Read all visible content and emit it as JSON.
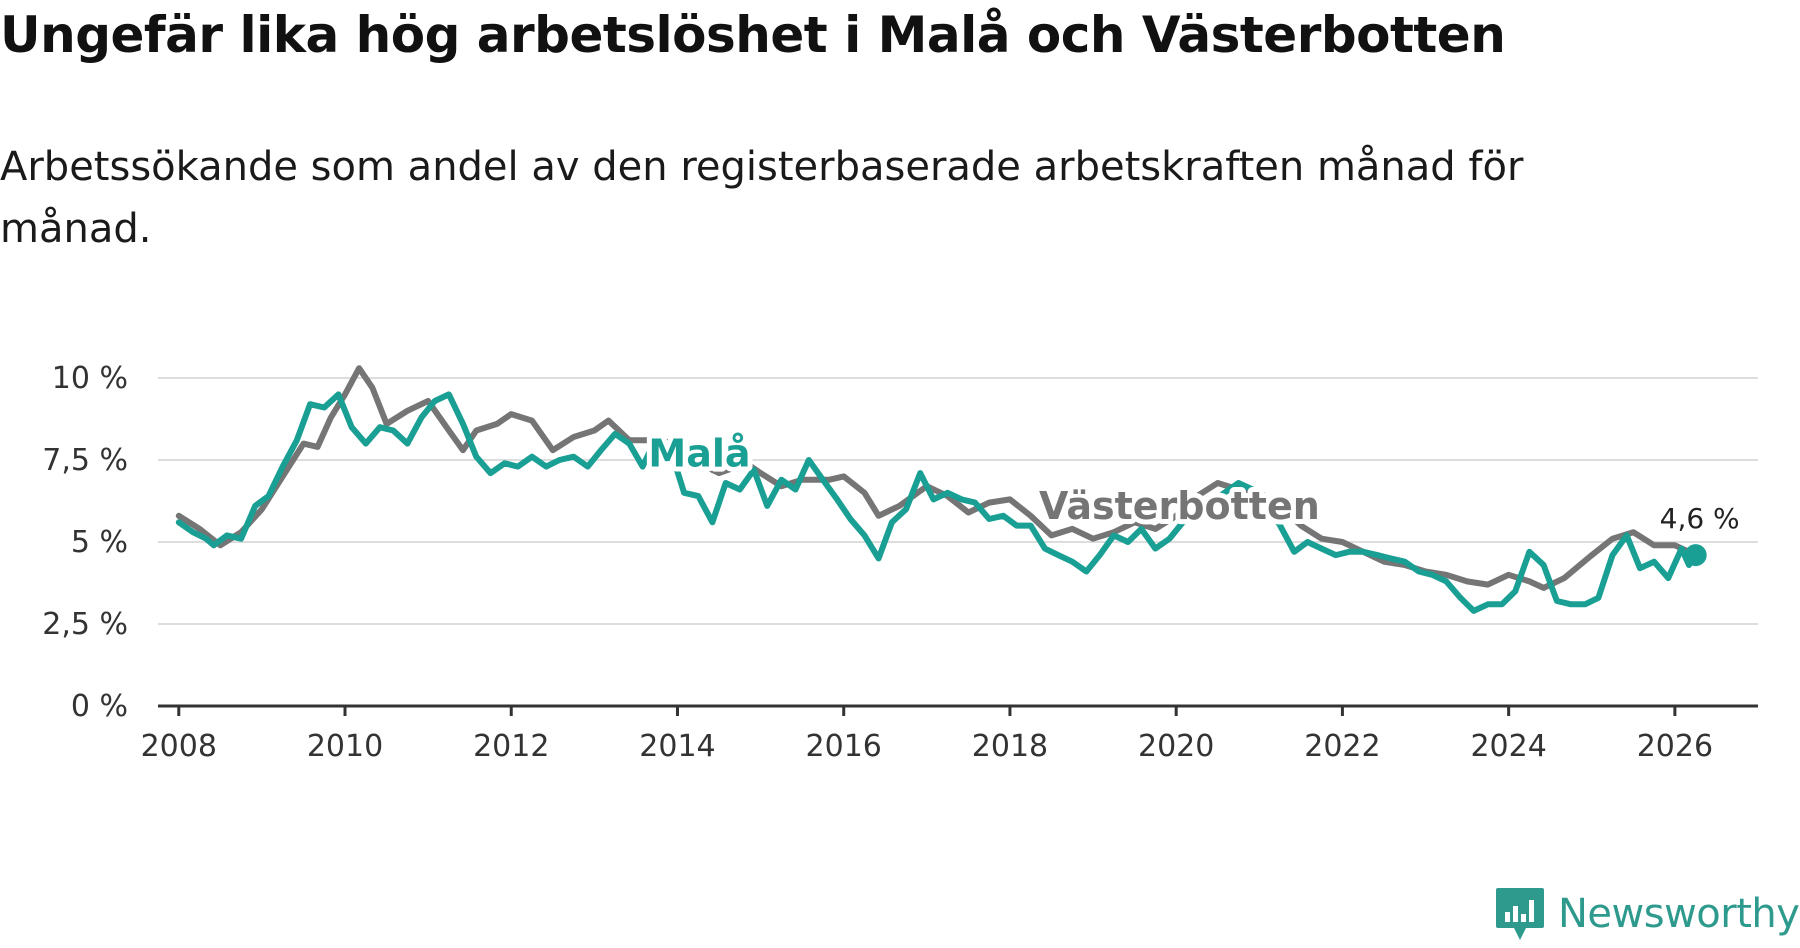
{
  "title": "Ungefär lika hög arbetslöshet i Malå och Västerbotten",
  "subtitle": "Arbetssökande som andel av den registerbaserade arbetskraften månad för månad.",
  "brand": {
    "name": "Newsworthy",
    "icon": "newsworthy-logo-icon"
  },
  "colors": {
    "mala": "#1a9f94",
    "vasterbotten": "#757575",
    "grid": "#dddddd",
    "axis": "#333333",
    "brand": "#2e9a8e"
  },
  "chart_data": {
    "type": "line",
    "title": "Ungefär lika hög arbetslöshet i Malå och Västerbotten",
    "xlabel": "",
    "ylabel": "",
    "xlim": [
      2007.75,
      2027.0
    ],
    "ylim": [
      0,
      10
    ],
    "y_ticks": [
      0,
      2.5,
      5,
      7.5,
      10
    ],
    "y_tick_labels": [
      "0 %",
      "2,5 %",
      "5 %",
      "7,5 %",
      "10 %"
    ],
    "x_ticks": [
      2008,
      2010,
      2012,
      2014,
      2016,
      2018,
      2020,
      2022,
      2024,
      2026
    ],
    "x_tick_labels": [
      "2008",
      "2010",
      "2012",
      "2014",
      "2016",
      "2018",
      "2020",
      "2022",
      "2024",
      "2026"
    ],
    "end_annotation": "4,6 %",
    "grid": true,
    "series": [
      {
        "name": "Västerbotten",
        "label": "Västerbotten",
        "color": "#757575",
        "points": [
          [
            2008.0,
            5.8
          ],
          [
            2008.25,
            5.4
          ],
          [
            2008.5,
            4.9
          ],
          [
            2008.75,
            5.3
          ],
          [
            2009.0,
            6.0
          ],
          [
            2009.25,
            7.0
          ],
          [
            2009.5,
            8.0
          ],
          [
            2009.67,
            7.9
          ],
          [
            2009.83,
            8.8
          ],
          [
            2010.0,
            9.5
          ],
          [
            2010.17,
            10.3
          ],
          [
            2010.33,
            9.7
          ],
          [
            2010.5,
            8.6
          ],
          [
            2010.75,
            9.0
          ],
          [
            2011.0,
            9.3
          ],
          [
            2011.25,
            8.4
          ],
          [
            2011.42,
            7.8
          ],
          [
            2011.58,
            8.4
          ],
          [
            2011.83,
            8.6
          ],
          [
            2012.0,
            8.9
          ],
          [
            2012.25,
            8.7
          ],
          [
            2012.5,
            7.8
          ],
          [
            2012.75,
            8.2
          ],
          [
            2013.0,
            8.4
          ],
          [
            2013.17,
            8.7
          ],
          [
            2013.42,
            8.1
          ],
          [
            2013.75,
            8.1
          ],
          [
            2014.0,
            8.0
          ],
          [
            2014.25,
            7.4
          ],
          [
            2014.5,
            7.1
          ],
          [
            2014.83,
            7.4
          ],
          [
            2015.0,
            7.1
          ],
          [
            2015.25,
            6.7
          ],
          [
            2015.5,
            6.9
          ],
          [
            2015.83,
            6.9
          ],
          [
            2016.0,
            7.0
          ],
          [
            2016.25,
            6.5
          ],
          [
            2016.42,
            5.8
          ],
          [
            2016.67,
            6.1
          ],
          [
            2017.0,
            6.7
          ],
          [
            2017.25,
            6.4
          ],
          [
            2017.5,
            5.9
          ],
          [
            2017.75,
            6.2
          ],
          [
            2018.0,
            6.3
          ],
          [
            2018.25,
            5.8
          ],
          [
            2018.5,
            5.2
          ],
          [
            2018.75,
            5.4
          ],
          [
            2019.0,
            5.1
          ],
          [
            2019.25,
            5.3
          ],
          [
            2019.5,
            5.6
          ],
          [
            2019.75,
            5.4
          ],
          [
            2020.0,
            5.8
          ],
          [
            2020.25,
            6.4
          ],
          [
            2020.5,
            6.8
          ],
          [
            2020.75,
            6.6
          ],
          [
            2021.0,
            6.5
          ],
          [
            2021.25,
            6.1
          ],
          [
            2021.5,
            5.5
          ],
          [
            2021.75,
            5.1
          ],
          [
            2022.0,
            5.0
          ],
          [
            2022.25,
            4.7
          ],
          [
            2022.5,
            4.4
          ],
          [
            2022.75,
            4.3
          ],
          [
            2023.0,
            4.1
          ],
          [
            2023.25,
            4.0
          ],
          [
            2023.5,
            3.8
          ],
          [
            2023.75,
            3.7
          ],
          [
            2024.0,
            4.0
          ],
          [
            2024.25,
            3.8
          ],
          [
            2024.42,
            3.6
          ],
          [
            2024.67,
            3.9
          ],
          [
            2025.0,
            4.6
          ],
          [
            2025.25,
            5.1
          ],
          [
            2025.5,
            5.3
          ],
          [
            2025.75,
            4.9
          ],
          [
            2026.0,
            4.9
          ],
          [
            2026.17,
            4.7
          ]
        ]
      },
      {
        "name": "Malå",
        "label": "Malå",
        "color": "#1a9f94",
        "points": [
          [
            2008.0,
            5.6
          ],
          [
            2008.17,
            5.3
          ],
          [
            2008.33,
            5.1
          ],
          [
            2008.42,
            4.9
          ],
          [
            2008.58,
            5.2
          ],
          [
            2008.75,
            5.1
          ],
          [
            2008.92,
            6.1
          ],
          [
            2009.08,
            6.4
          ],
          [
            2009.25,
            7.3
          ],
          [
            2009.42,
            8.1
          ],
          [
            2009.58,
            9.2
          ],
          [
            2009.75,
            9.1
          ],
          [
            2009.92,
            9.5
          ],
          [
            2010.08,
            8.5
          ],
          [
            2010.25,
            8.0
          ],
          [
            2010.42,
            8.5
          ],
          [
            2010.58,
            8.4
          ],
          [
            2010.75,
            8.0
          ],
          [
            2010.92,
            8.8
          ],
          [
            2011.08,
            9.3
          ],
          [
            2011.25,
            9.5
          ],
          [
            2011.42,
            8.6
          ],
          [
            2011.58,
            7.6
          ],
          [
            2011.75,
            7.1
          ],
          [
            2011.92,
            7.4
          ],
          [
            2012.08,
            7.3
          ],
          [
            2012.25,
            7.6
          ],
          [
            2012.42,
            7.3
          ],
          [
            2012.58,
            7.5
          ],
          [
            2012.75,
            7.6
          ],
          [
            2012.92,
            7.3
          ],
          [
            2013.08,
            7.8
          ],
          [
            2013.25,
            8.3
          ],
          [
            2013.42,
            8.0
          ],
          [
            2013.58,
            7.3
          ],
          [
            2013.75,
            8.2
          ],
          [
            2013.92,
            7.8
          ],
          [
            2014.08,
            6.5
          ],
          [
            2014.25,
            6.4
          ],
          [
            2014.42,
            5.6
          ],
          [
            2014.58,
            6.8
          ],
          [
            2014.75,
            6.6
          ],
          [
            2014.92,
            7.2
          ],
          [
            2015.08,
            6.1
          ],
          [
            2015.25,
            6.9
          ],
          [
            2015.42,
            6.6
          ],
          [
            2015.58,
            7.5
          ],
          [
            2015.75,
            6.9
          ],
          [
            2015.92,
            6.3
          ],
          [
            2016.08,
            5.7
          ],
          [
            2016.25,
            5.2
          ],
          [
            2016.42,
            4.5
          ],
          [
            2016.58,
            5.6
          ],
          [
            2016.75,
            6.0
          ],
          [
            2016.92,
            7.1
          ],
          [
            2017.08,
            6.3
          ],
          [
            2017.25,
            6.5
          ],
          [
            2017.42,
            6.3
          ],
          [
            2017.58,
            6.2
          ],
          [
            2017.75,
            5.7
          ],
          [
            2017.92,
            5.8
          ],
          [
            2018.08,
            5.5
          ],
          [
            2018.25,
            5.5
          ],
          [
            2018.42,
            4.8
          ],
          [
            2018.58,
            4.6
          ],
          [
            2018.75,
            4.4
          ],
          [
            2018.92,
            4.1
          ],
          [
            2019.08,
            4.6
          ],
          [
            2019.25,
            5.2
          ],
          [
            2019.42,
            5.0
          ],
          [
            2019.58,
            5.4
          ],
          [
            2019.75,
            4.8
          ],
          [
            2019.92,
            5.1
          ],
          [
            2020.08,
            5.6
          ],
          [
            2020.25,
            5.8
          ],
          [
            2020.42,
            6.2
          ],
          [
            2020.58,
            6.5
          ],
          [
            2020.75,
            6.8
          ],
          [
            2020.92,
            6.6
          ],
          [
            2021.08,
            6.2
          ],
          [
            2021.25,
            5.5
          ],
          [
            2021.42,
            4.7
          ],
          [
            2021.58,
            5.0
          ],
          [
            2021.75,
            4.8
          ],
          [
            2021.92,
            4.6
          ],
          [
            2022.08,
            4.7
          ],
          [
            2022.25,
            4.7
          ],
          [
            2022.42,
            4.6
          ],
          [
            2022.58,
            4.5
          ],
          [
            2022.75,
            4.4
          ],
          [
            2022.92,
            4.1
          ],
          [
            2023.08,
            4.0
          ],
          [
            2023.25,
            3.8
          ],
          [
            2023.42,
            3.3
          ],
          [
            2023.58,
            2.9
          ],
          [
            2023.75,
            3.1
          ],
          [
            2023.92,
            3.1
          ],
          [
            2024.08,
            3.5
          ],
          [
            2024.25,
            4.7
          ],
          [
            2024.42,
            4.3
          ],
          [
            2024.58,
            3.2
          ],
          [
            2024.75,
            3.1
          ],
          [
            2024.92,
            3.1
          ],
          [
            2025.08,
            3.3
          ],
          [
            2025.25,
            4.6
          ],
          [
            2025.42,
            5.2
          ],
          [
            2025.58,
            4.2
          ],
          [
            2025.75,
            4.4
          ],
          [
            2025.92,
            3.9
          ],
          [
            2026.08,
            4.8
          ],
          [
            2026.17,
            4.3
          ],
          [
            2026.25,
            4.6
          ]
        ]
      }
    ]
  }
}
